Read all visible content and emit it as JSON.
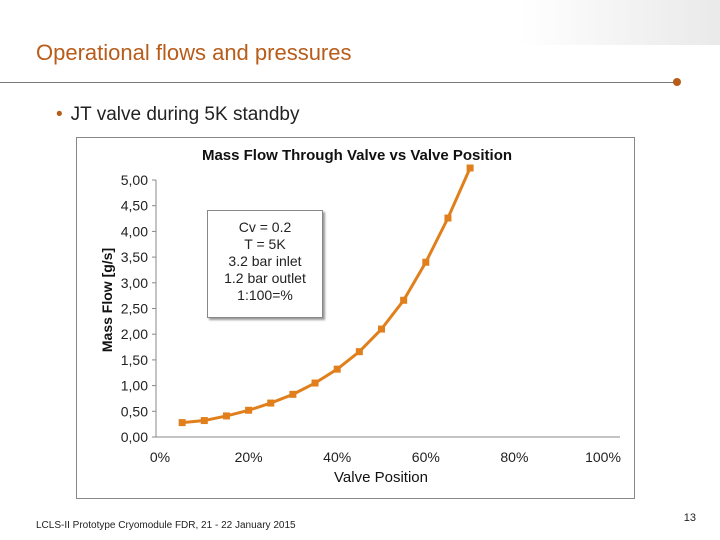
{
  "slide": {
    "title": "Operational flows and pressures",
    "bullet": "JT valve during 5K standby",
    "footer": "LCLS-II Prototype Cryomodule FDR, 21 - 22 January 2015",
    "page_number": "13",
    "accent_color": "#b85c1a"
  },
  "annotation": {
    "lines": [
      "Cv = 0.2",
      "T = 5K",
      "3.2 bar inlet",
      "1.2 bar outlet",
      "1:100=%"
    ]
  },
  "chart_data": {
    "type": "line",
    "title": "Mass Flow Through Valve vs Valve Position",
    "xlabel": "Valve Position",
    "ylabel": "Mass Flow [g/s]",
    "xlim": [
      0,
      1.0
    ],
    "ylim": [
      0,
      5.0
    ],
    "x_ticks": [
      "0%",
      "20%",
      "40%",
      "60%",
      "80%",
      "100%"
    ],
    "y_ticks": [
      "0,00",
      "0,50",
      "1,00",
      "1,50",
      "2,00",
      "2,50",
      "3,00",
      "3,50",
      "4,00",
      "4,50",
      "5,00"
    ],
    "series": [
      {
        "name": "Mass Flow",
        "color": "#e07f1c",
        "x": [
          0.05,
          0.1,
          0.15,
          0.2,
          0.25,
          0.3,
          0.35,
          0.4,
          0.45,
          0.5,
          0.55,
          0.6,
          0.65,
          0.7
        ],
        "y": [
          0.28,
          0.32,
          0.41,
          0.52,
          0.66,
          0.83,
          1.05,
          1.32,
          1.66,
          2.1,
          2.66,
          3.4,
          4.26,
          5.4
        ]
      }
    ]
  }
}
